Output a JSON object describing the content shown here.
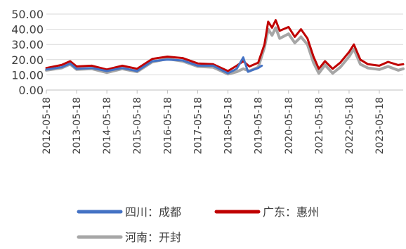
{
  "chart_data": {
    "type": "line",
    "title": "",
    "xlabel": "",
    "ylabel": "",
    "ylim": [
      0,
      50
    ],
    "yticks": [
      "50.00",
      "40.00",
      "30.00",
      "20.00",
      "10.00",
      "0.00"
    ],
    "x_range": [
      "2012-05-18",
      "2024-03-01"
    ],
    "xtick_labels": [
      "2012-05-18",
      "2013-05-18",
      "2014-05-18",
      "2015-05-18",
      "2016-05-18",
      "2017-05-18",
      "2018-05-18",
      "2019-05-18",
      "2020-05-18",
      "2021-05-18",
      "2022-05-18",
      "2023-05-18"
    ],
    "legend_position": "bottom",
    "grid": true,
    "series": [
      {
        "name": "四川：成都",
        "color": "#4472C4",
        "points": [
          [
            "2012-05-18",
            13.5
          ],
          [
            "2012-11-18",
            15.0
          ],
          [
            "2013-03-01",
            17.5
          ],
          [
            "2013-05-18",
            14.0
          ],
          [
            "2013-11-18",
            14.5
          ],
          [
            "2014-05-18",
            12.5
          ],
          [
            "2014-11-18",
            14.5
          ],
          [
            "2015-05-18",
            12.5
          ],
          [
            "2015-11-18",
            19.0
          ],
          [
            "2016-05-18",
            20.0
          ],
          [
            "2016-11-18",
            19.5
          ],
          [
            "2017-05-18",
            16.0
          ],
          [
            "2017-11-18",
            16.0
          ],
          [
            "2018-05-18",
            11.0
          ],
          [
            "2018-09-01",
            14.0
          ],
          [
            "2018-11-18",
            21.5
          ],
          [
            "2019-01-15",
            12.0
          ],
          [
            "2019-03-01",
            13.0
          ],
          [
            "2019-05-18",
            14.5
          ],
          [
            "2019-07-01",
            16.0
          ]
        ]
      },
      {
        "name": "广东：惠州",
        "color": "#C00000",
        "points": [
          [
            "2012-05-18",
            14.5
          ],
          [
            "2012-11-18",
            16.5
          ],
          [
            "2013-03-01",
            19.0
          ],
          [
            "2013-05-18",
            15.5
          ],
          [
            "2013-11-18",
            16.0
          ],
          [
            "2014-05-18",
            13.5
          ],
          [
            "2014-11-18",
            16.0
          ],
          [
            "2015-05-18",
            14.0
          ],
          [
            "2015-11-18",
            20.5
          ],
          [
            "2016-05-18",
            22.0
          ],
          [
            "2016-11-18",
            21.0
          ],
          [
            "2017-05-18",
            17.5
          ],
          [
            "2017-11-18",
            17.0
          ],
          [
            "2018-05-18",
            12.5
          ],
          [
            "2018-09-01",
            16.0
          ],
          [
            "2018-11-18",
            19.0
          ],
          [
            "2019-02-01",
            15.5
          ],
          [
            "2019-05-18",
            18.0
          ],
          [
            "2019-08-01",
            30.0
          ],
          [
            "2019-09-15",
            45.0
          ],
          [
            "2019-11-01",
            41.0
          ],
          [
            "2019-12-15",
            46.0
          ],
          [
            "2020-02-01",
            39.0
          ],
          [
            "2020-05-18",
            41.5
          ],
          [
            "2020-08-01",
            35.0
          ],
          [
            "2020-10-15",
            40.0
          ],
          [
            "2021-01-01",
            34.0
          ],
          [
            "2021-03-15",
            22.0
          ],
          [
            "2021-05-18",
            14.0
          ],
          [
            "2021-08-01",
            19.0
          ],
          [
            "2021-11-01",
            14.0
          ],
          [
            "2022-02-01",
            18.0
          ],
          [
            "2022-05-18",
            25.0
          ],
          [
            "2022-07-15",
            30.0
          ],
          [
            "2022-10-01",
            20.0
          ],
          [
            "2023-01-01",
            17.0
          ],
          [
            "2023-05-18",
            16.0
          ],
          [
            "2023-09-01",
            18.5
          ],
          [
            "2024-01-01",
            16.5
          ],
          [
            "2024-03-01",
            17.0
          ]
        ]
      },
      {
        "name": "河南：开封",
        "color": "#A6A6A6",
        "points": [
          [
            "2012-05-18",
            13.0
          ],
          [
            "2012-11-18",
            14.5
          ],
          [
            "2013-03-01",
            17.0
          ],
          [
            "2013-05-18",
            13.5
          ],
          [
            "2013-11-18",
            14.0
          ],
          [
            "2014-05-18",
            11.5
          ],
          [
            "2014-11-18",
            14.0
          ],
          [
            "2015-05-18",
            12.0
          ],
          [
            "2015-11-18",
            18.5
          ],
          [
            "2016-05-18",
            20.5
          ],
          [
            "2016-11-18",
            19.0
          ],
          [
            "2017-05-18",
            15.5
          ],
          [
            "2017-11-18",
            15.0
          ],
          [
            "2018-05-18",
            10.5
          ],
          [
            "2018-09-01",
            12.0
          ],
          [
            "2018-11-18",
            14.0
          ],
          [
            "2019-02-01",
            12.5
          ],
          [
            "2019-05-18",
            15.0
          ],
          [
            "2019-08-01",
            28.0
          ],
          [
            "2019-09-15",
            40.0
          ],
          [
            "2019-11-01",
            36.0
          ],
          [
            "2019-12-15",
            41.0
          ],
          [
            "2020-02-01",
            34.0
          ],
          [
            "2020-05-18",
            37.0
          ],
          [
            "2020-08-01",
            31.0
          ],
          [
            "2020-10-15",
            35.0
          ],
          [
            "2021-01-01",
            30.0
          ],
          [
            "2021-03-15",
            18.0
          ],
          [
            "2021-05-18",
            11.0
          ],
          [
            "2021-08-01",
            16.5
          ],
          [
            "2021-11-01",
            11.0
          ],
          [
            "2022-02-01",
            15.0
          ],
          [
            "2022-05-18",
            22.0
          ],
          [
            "2022-07-15",
            27.0
          ],
          [
            "2022-10-01",
            17.0
          ],
          [
            "2023-01-01",
            14.5
          ],
          [
            "2023-05-18",
            13.5
          ],
          [
            "2023-09-01",
            15.5
          ],
          [
            "2024-01-01",
            13.0
          ],
          [
            "2024-03-01",
            14.0
          ]
        ]
      }
    ]
  }
}
